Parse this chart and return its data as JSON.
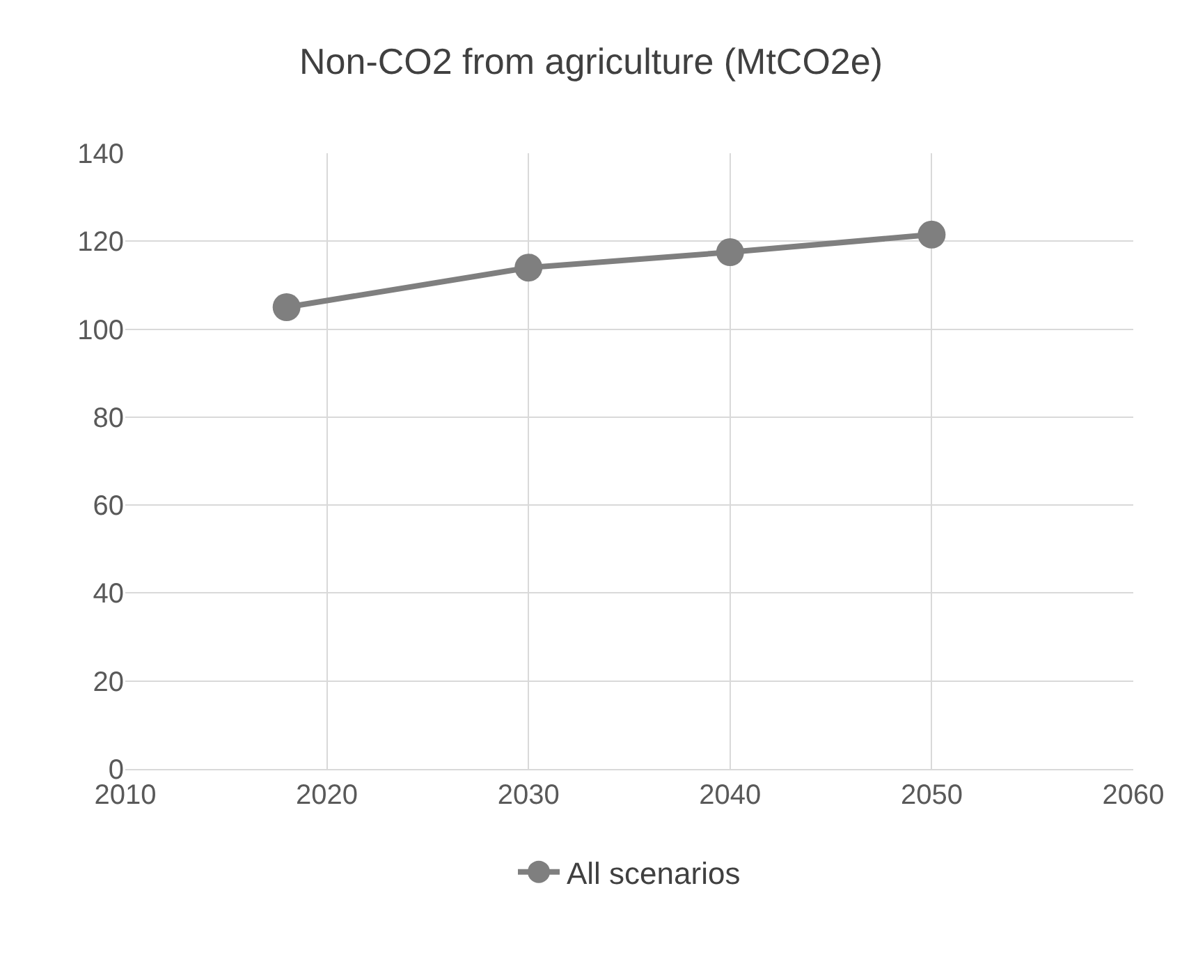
{
  "chart_data": {
    "type": "line",
    "title": "Non-CO2 from agriculture (MtCO2e)",
    "x": [
      2018,
      2030,
      2040,
      2050
    ],
    "series": [
      {
        "name": "All scenarios",
        "color": "#7f7f7f",
        "values": [
          105,
          114,
          117.5,
          121.5
        ]
      }
    ],
    "xlim": [
      2010,
      2060
    ],
    "xticks": [
      2010,
      2020,
      2030,
      2040,
      2050,
      2060
    ],
    "ylim": [
      0,
      140
    ],
    "yticks": [
      0,
      20,
      40,
      60,
      80,
      100,
      120,
      140
    ],
    "grid": true,
    "legend": "bottom",
    "marker": "circle",
    "line_style": "solid"
  }
}
